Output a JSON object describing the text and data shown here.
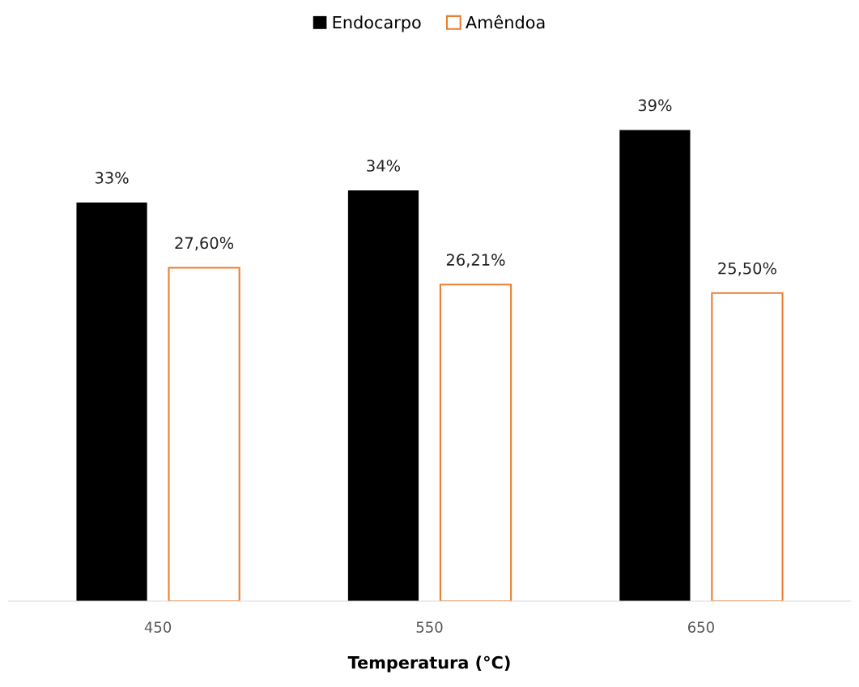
{
  "chart_data": {
    "type": "bar",
    "xlabel": "Temperatura (°C)",
    "categories": [
      "450",
      "550",
      "650"
    ],
    "series": [
      {
        "name": "Endocarpo",
        "color": "#000000",
        "values": [
          33,
          34,
          39
        ],
        "value_labels": [
          "33%",
          "34%",
          "39%"
        ]
      },
      {
        "name": "Amêndoa",
        "color": "#ed7d31",
        "values": [
          27.6,
          26.21,
          25.5
        ],
        "value_labels": [
          "27,60%",
          "26,21%",
          "25,50%"
        ]
      }
    ],
    "tick_labels": "x",
    "legend": "top",
    "grid": false
  }
}
